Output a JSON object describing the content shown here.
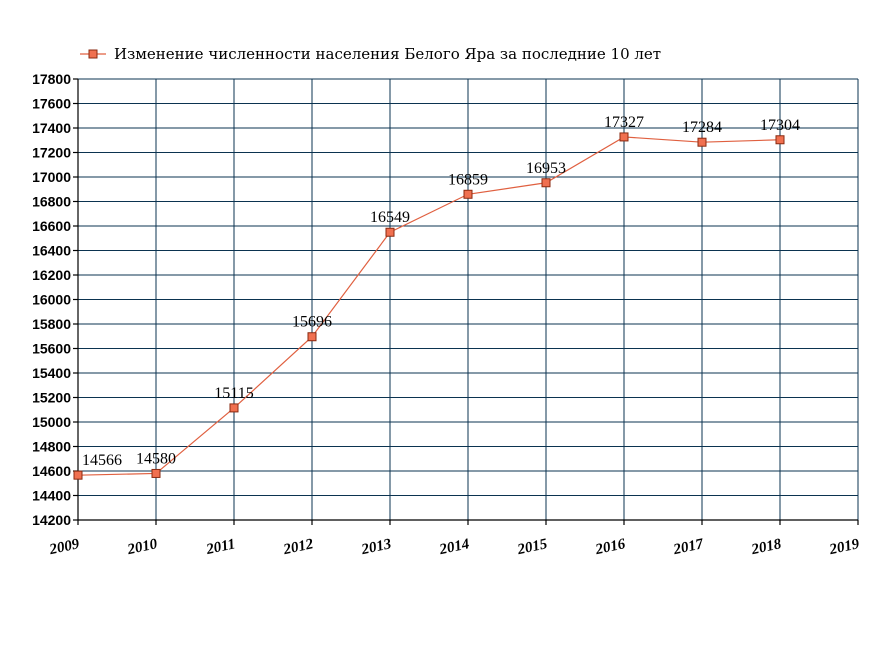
{
  "chart_data": {
    "type": "line",
    "title": "",
    "xlabel": "",
    "ylabel": "",
    "legend": {
      "position": "top-left",
      "entries": [
        "Изменение численности населения Белого Яра за последние 10 лет"
      ]
    },
    "x_ticks": [
      "2009",
      "2010",
      "2011",
      "2012",
      "2013",
      "2014",
      "2015",
      "2016",
      "2017",
      "2018",
      "2019"
    ],
    "xlim": [
      2009,
      2019
    ],
    "ylim": [
      14200,
      17800
    ],
    "y_step": 200,
    "grid": true,
    "series": [
      {
        "name": "Изменение численности населения Белого Яра за последние 10 лет",
        "color": "#e06040",
        "marker_color": "#f07050",
        "x": [
          2009,
          2010,
          2011,
          2012,
          2013,
          2014,
          2015,
          2016,
          2017,
          2018
        ],
        "values": [
          14566,
          14580,
          15115,
          15696,
          16549,
          16859,
          16953,
          17327,
          17284,
          17304
        ],
        "labels": [
          "14566",
          "14580",
          "15115",
          "15696",
          "16549",
          "16859",
          "16953",
          "17327",
          "17284",
          "17304"
        ]
      }
    ]
  }
}
